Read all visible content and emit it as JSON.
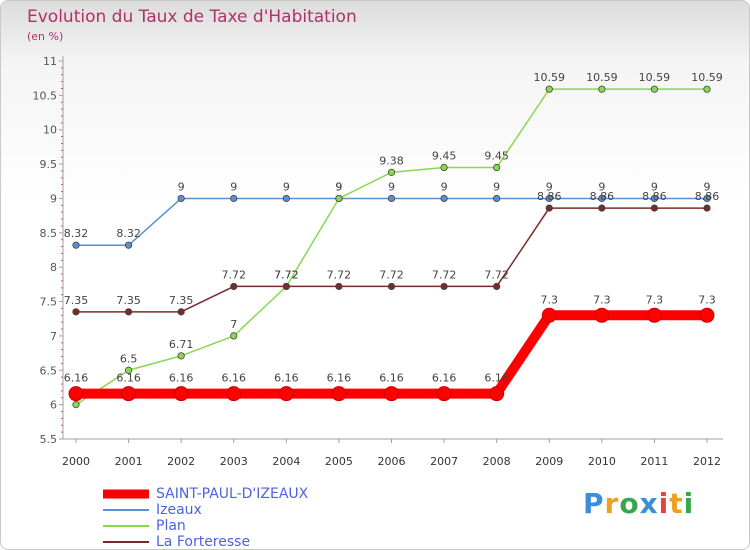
{
  "header": {
    "title": "Evolution du Taux de Taxe d'Habitation",
    "subtitle": "(en %)"
  },
  "logo": {
    "text": "Proxiti"
  },
  "chart_data": {
    "type": "line",
    "title": "Evolution du Taux de Taxe d'Habitation",
    "subtitle": "(en %)",
    "categories": [
      "2000",
      "2001",
      "2002",
      "2003",
      "2004",
      "2005",
      "2006",
      "2007",
      "2008",
      "2009",
      "2010",
      "2011",
      "2012"
    ],
    "y_ticks": [
      "5.5",
      "6",
      "6.5",
      "7",
      "7.5",
      "8",
      "8.5",
      "9",
      "9.5",
      "10",
      "10.5",
      "11"
    ],
    "ylim": [
      5.5,
      11
    ],
    "grid": false,
    "legend_position": "bottom-left",
    "series": [
      {
        "name": "SAINT-PAUL-D'IZEAUX",
        "color": "#ff0000",
        "values": [
          6.16,
          6.16,
          6.16,
          6.16,
          6.16,
          6.16,
          6.16,
          6.16,
          6.16,
          7.3,
          7.3,
          7.3,
          7.3
        ],
        "labels": [
          "6.16",
          "6.16",
          "6.16",
          "6.16",
          "6.16",
          "6.16",
          "6.16",
          "6.16",
          "6.16",
          "7.3",
          "7.3",
          "7.3",
          "7.3"
        ]
      },
      {
        "name": "Izeaux",
        "color": "#5a8fd0",
        "values": [
          8.32,
          8.32,
          9,
          9,
          9,
          9,
          9,
          9,
          9,
          9,
          9,
          9,
          9
        ],
        "labels": [
          "8.32",
          "8.32",
          "9",
          "9",
          "9",
          "9",
          "9",
          "9",
          "9",
          "9",
          "9",
          "9",
          "9"
        ]
      },
      {
        "name": "Plan",
        "color": "#88d850",
        "values": [
          6,
          6.5,
          6.71,
          7,
          7.72,
          9,
          9.38,
          9.45,
          9.45,
          10.59,
          10.59,
          10.59,
          10.59
        ],
        "labels": [
          "6",
          "6.5",
          "6.71",
          "7",
          "7.72",
          "9",
          "9.38",
          "9.45",
          "9.45",
          "10.59",
          "10.59",
          "10.59",
          "10.59"
        ]
      },
      {
        "name": "La Forteresse",
        "color": "#7a2a2a",
        "values": [
          7.35,
          7.35,
          7.35,
          7.72,
          7.72,
          7.72,
          7.72,
          7.72,
          7.72,
          8.86,
          8.86,
          8.86,
          8.86
        ],
        "labels": [
          "7.35",
          "7.35",
          "7.35",
          "7.72",
          "7.72",
          "7.72",
          "7.72",
          "7.72",
          "7.72",
          "8.86",
          "8.86",
          "8.86",
          "8.86"
        ]
      }
    ]
  }
}
